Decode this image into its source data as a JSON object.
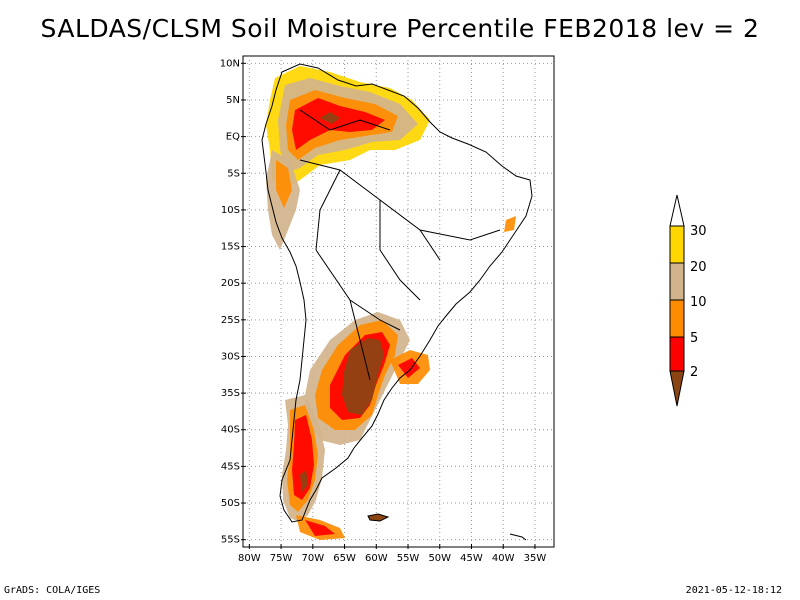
{
  "title": "SALDAS/CLSM Soil Moisture Percentile FEB2018 lev = 2",
  "footer": {
    "left": "GrADS: COLA/IGES",
    "right": "2021-05-12-18:12"
  },
  "map": {
    "lat_labels": [
      "10N",
      "5N",
      "EQ",
      "5S",
      "10S",
      "15S",
      "20S",
      "25S",
      "30S",
      "35S",
      "40S",
      "45S",
      "50S",
      "55S"
    ],
    "lon_labels": [
      "80W",
      "75W",
      "70W",
      "65W",
      "60W",
      "55W",
      "50W",
      "45W",
      "40W",
      "35W"
    ],
    "lon_range": [
      -81,
      -32
    ],
    "lat_range": [
      -56,
      11
    ]
  },
  "colorbar": {
    "labels": [
      "2",
      "5",
      "10",
      "20",
      "30"
    ],
    "colors": {
      "below_2": "#8b4513",
      "2_5": "#ff0000",
      "5_10": "#ff8c00",
      "10_20": "#d2b48c",
      "20_30": "#ffd700",
      "above_30": "#ffffff"
    }
  },
  "colors": {
    "brown": "#8b4513",
    "red": "#ff0000",
    "orange": "#ff8c00",
    "tan": "#d2b48c",
    "yellow": "#ffd700"
  }
}
